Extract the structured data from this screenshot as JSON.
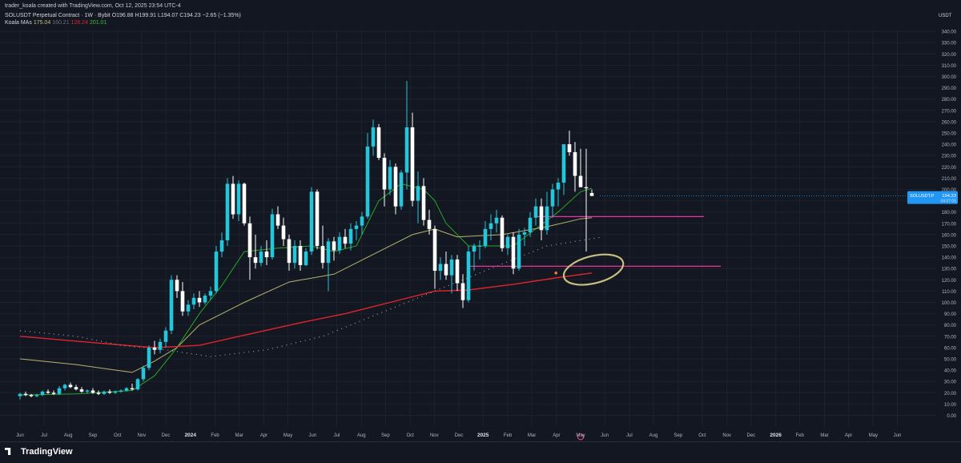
{
  "header": {
    "credit": "trader_koala created with TradingView.com, Oct 12, 2025 23:54 UTC-4",
    "symbol_line": "SOLUSDT Perpetual Contract · 1W · Bybit",
    "ohlc": {
      "o": "O196.88",
      "h": "H199.91",
      "l": "L194.07",
      "c": "C194.23",
      "chg": "−2.65 (−1.35%)"
    },
    "ma_label": "Koala MAs",
    "ma_values": [
      "175.04",
      "160.21",
      "126.24",
      "201.01"
    ]
  },
  "axis_unit": "USDT",
  "price_tag": {
    "symbol": "SOLUSDT.P",
    "price": "194.23",
    "timer": "04:07:05"
  },
  "footer": {
    "brand": "TradingView"
  },
  "colors": {
    "bg": "#131722",
    "grid": "#1e222d",
    "up": "#26c6da",
    "down": "#ffffff",
    "ma_fast": "#26a626",
    "ma_mid": "#b8b46a",
    "ma_slow": "#e0242c",
    "ma_dotted": "#9aa0ac",
    "level": "#f032a0",
    "circle": "#c8c080",
    "tag": "#2196f3"
  },
  "chart_data": {
    "type": "candlestick",
    "ylim": [
      -10,
      350
    ],
    "y_ticks": [
      "0.00",
      "10.00",
      "20.00",
      "30.00",
      "40.00",
      "50.00",
      "60.00",
      "70.00",
      "80.00",
      "90.00",
      "100.00",
      "110.00",
      "120.00",
      "130.00",
      "140.00",
      "150.00",
      "160.00",
      "170.00",
      "180.00",
      "190.00",
      "200.00",
      "210.00",
      "220.00",
      "230.00",
      "240.00",
      "250.00",
      "260.00",
      "270.00",
      "280.00",
      "290.00",
      "300.00",
      "310.00",
      "320.00",
      "330.00",
      "340.00"
    ],
    "y_tick_values": [
      0,
      10,
      20,
      30,
      40,
      50,
      60,
      70,
      80,
      90,
      100,
      110,
      120,
      130,
      140,
      150,
      160,
      170,
      180,
      190,
      200,
      210,
      220,
      230,
      240,
      250,
      260,
      270,
      280,
      290,
      300,
      310,
      320,
      330,
      340
    ],
    "x_labels": [
      "Jun",
      "Jul",
      "Aug",
      "Sep",
      "Oct",
      "Nov",
      "Dec",
      "2024",
      "Feb",
      "Mar",
      "Apr",
      "May",
      "Jun",
      "Jul",
      "Aug",
      "Sep",
      "Oct",
      "Nov",
      "Dec",
      "2025",
      "Feb",
      "Mar",
      "Apr",
      "May",
      "Jun",
      "Jul",
      "Aug",
      "Sep",
      "Oct",
      "Nov",
      "Dec",
      "2026",
      "Feb",
      "Mar",
      "Apr",
      "May",
      "Jun"
    ],
    "x_label_weeks": [
      0,
      4.3,
      8.6,
      13,
      17.4,
      21.7,
      26,
      30.4,
      34.8,
      39.1,
      43.5,
      47.8,
      52.2,
      56.5,
      60.9,
      65.2,
      69.6,
      73.9,
      78.3,
      82.6,
      87,
      91.3,
      95.7,
      100,
      104.3,
      108.7,
      113,
      117.4,
      121.7,
      126.1,
      130.4,
      134.8,
      139.1,
      143.5,
      147.8,
      152.2,
      156.5
    ],
    "series": [
      {
        "name": "SOLUSDT.P",
        "candles": [
          [
            17,
            20,
            14,
            19
          ],
          [
            19,
            21,
            17,
            18
          ],
          [
            18,
            19,
            16,
            17
          ],
          [
            17,
            19,
            16,
            18
          ],
          [
            18,
            22,
            17,
            21
          ],
          [
            21,
            23,
            19,
            20
          ],
          [
            20,
            22,
            18,
            19
          ],
          [
            19,
            26,
            18,
            24
          ],
          [
            24,
            28,
            22,
            27
          ],
          [
            27,
            29,
            24,
            25
          ],
          [
            25,
            27,
            22,
            23
          ],
          [
            23,
            25,
            20,
            21
          ],
          [
            21,
            23,
            19,
            22
          ],
          [
            22,
            24,
            19,
            20
          ],
          [
            20,
            22,
            18,
            19
          ],
          [
            19,
            22,
            18,
            21
          ],
          [
            21,
            23,
            19,
            20
          ],
          [
            20,
            22,
            19,
            21
          ],
          [
            21,
            23,
            20,
            22
          ],
          [
            22,
            25,
            21,
            24
          ],
          [
            24,
            28,
            22,
            23
          ],
          [
            23,
            33,
            22,
            32
          ],
          [
            32,
            44,
            30,
            42
          ],
          [
            42,
            62,
            40,
            60
          ],
          [
            60,
            66,
            54,
            58
          ],
          [
            58,
            68,
            55,
            65
          ],
          [
            65,
            78,
            60,
            75
          ],
          [
            75,
            124,
            72,
            120
          ],
          [
            120,
            124,
            104,
            110
          ],
          [
            110,
            118,
            88,
            92
          ],
          [
            92,
            102,
            88,
            98
          ],
          [
            98,
            108,
            94,
            104
          ],
          [
            104,
            110,
            96,
            100
          ],
          [
            100,
            108,
            98,
            106
          ],
          [
            106,
            114,
            102,
            110
          ],
          [
            110,
            150,
            108,
            145
          ],
          [
            145,
            162,
            140,
            155
          ],
          [
            155,
            210,
            150,
            205
          ],
          [
            205,
            212,
            174,
            178
          ],
          [
            178,
            208,
            172,
            205
          ],
          [
            205,
            206,
            168,
            170
          ],
          [
            170,
            176,
            120,
            140
          ],
          [
            140,
            160,
            130,
            135
          ],
          [
            135,
            150,
            132,
            145
          ],
          [
            145,
            155,
            133,
            140
          ],
          [
            140,
            183,
            138,
            178
          ],
          [
            178,
            185,
            165,
            168
          ],
          [
            168,
            175,
            150,
            156
          ],
          [
            156,
            160,
            128,
            135
          ],
          [
            135,
            155,
            130,
            150
          ],
          [
            150,
            155,
            128,
            133
          ],
          [
            133,
            148,
            132,
            145
          ],
          [
            145,
            202,
            142,
            198
          ],
          [
            198,
            200,
            147,
            150
          ],
          [
            150,
            168,
            130,
            135
          ],
          [
            135,
            157,
            110,
            154
          ],
          [
            154,
            158,
            137,
            146
          ],
          [
            146,
            162,
            143,
            158
          ],
          [
            158,
            165,
            148,
            152
          ],
          [
            152,
            170,
            146,
            165
          ],
          [
            165,
            172,
            155,
            168
          ],
          [
            168,
            180,
            160,
            176
          ],
          [
            176,
            250,
            174,
            238
          ],
          [
            238,
            262,
            230,
            255
          ],
          [
            255,
            258,
            226,
            228
          ],
          [
            228,
            232,
            185,
            200
          ],
          [
            200,
            226,
            195,
            220
          ],
          [
            220,
            223,
            178,
            185
          ],
          [
            185,
            217,
            182,
            215
          ],
          [
            215,
            296,
            200,
            255
          ],
          [
            255,
            268,
            185,
            190
          ],
          [
            190,
            216,
            170,
            203
          ],
          [
            203,
            210,
            168,
            173
          ],
          [
            173,
            182,
            160,
            165
          ],
          [
            165,
            168,
            112,
            128
          ],
          [
            128,
            140,
            120,
            134
          ],
          [
            134,
            145,
            120,
            124
          ],
          [
            124,
            142,
            108,
            138
          ],
          [
            138,
            142,
            110,
            117
          ],
          [
            117,
            125,
            95,
            102
          ],
          [
            102,
            150,
            100,
            145
          ],
          [
            145,
            152,
            128,
            150
          ],
          [
            150,
            155,
            138,
            150
          ],
          [
            150,
            172,
            148,
            165
          ],
          [
            165,
            178,
            155,
            170
          ],
          [
            170,
            182,
            162,
            175
          ],
          [
            175,
            177,
            145,
            148
          ],
          [
            148,
            160,
            142,
            158
          ],
          [
            158,
            162,
            125,
            130
          ],
          [
            130,
            165,
            128,
            160
          ],
          [
            160,
            166,
            150,
            162
          ],
          [
            162,
            180,
            158,
            175
          ],
          [
            175,
            192,
            168,
            185
          ],
          [
            185,
            192,
            155,
            164
          ],
          [
            164,
            198,
            160,
            185
          ],
          [
            185,
            205,
            175,
            200
          ],
          [
            200,
            210,
            185,
            206
          ],
          [
            206,
            240,
            195,
            240
          ],
          [
            240,
            252,
            230,
            233
          ],
          [
            233,
            242,
            198,
            212
          ],
          [
            212,
            236,
            205,
            202
          ],
          [
            202,
            236,
            145,
            201
          ],
          [
            196.88,
            199.91,
            194.07,
            194.23
          ]
        ]
      }
    ],
    "moving_averages": [
      {
        "name": "MA fast",
        "color": "#26a626",
        "values": [
          [
            0,
            18
          ],
          [
            10,
            19
          ],
          [
            20,
            22
          ],
          [
            24,
            35
          ],
          [
            28,
            60
          ],
          [
            32,
            90
          ],
          [
            36,
            115
          ],
          [
            40,
            145
          ],
          [
            46,
            148
          ],
          [
            52,
            150
          ],
          [
            56,
            145
          ],
          [
            60,
            150
          ],
          [
            64,
            190
          ],
          [
            68,
            205
          ],
          [
            72,
            200
          ],
          [
            74,
            190
          ],
          [
            76,
            170
          ],
          [
            80,
            150
          ],
          [
            84,
            150
          ],
          [
            88,
            150
          ],
          [
            92,
            165
          ],
          [
            96,
            180
          ],
          [
            100,
            198
          ],
          [
            102,
            201
          ]
        ]
      },
      {
        "name": "MA mid",
        "color": "#b8b46a",
        "values": [
          [
            0,
            50
          ],
          [
            10,
            45
          ],
          [
            20,
            38
          ],
          [
            24,
            48
          ],
          [
            28,
            60
          ],
          [
            32,
            80
          ],
          [
            40,
            100
          ],
          [
            48,
            118
          ],
          [
            56,
            125
          ],
          [
            64,
            145
          ],
          [
            70,
            160
          ],
          [
            74,
            165
          ],
          [
            78,
            158
          ],
          [
            86,
            160
          ],
          [
            94,
            167
          ],
          [
            100,
            174
          ],
          [
            102,
            175
          ]
        ]
      },
      {
        "name": "MA slow",
        "color": "#e0242c",
        "values": [
          [
            0,
            70
          ],
          [
            14,
            64
          ],
          [
            24,
            60
          ],
          [
            32,
            62
          ],
          [
            40,
            71
          ],
          [
            50,
            82
          ],
          [
            58,
            90
          ],
          [
            66,
            100
          ],
          [
            74,
            110
          ],
          [
            80,
            111
          ],
          [
            88,
            116
          ],
          [
            96,
            122
          ],
          [
            102,
            126
          ]
        ]
      },
      {
        "name": "MA dotted",
        "color": "#9aa0ac",
        "values": [
          [
            0,
            75
          ],
          [
            10,
            70
          ],
          [
            18,
            62
          ],
          [
            26,
            58
          ],
          [
            34,
            52
          ],
          [
            44,
            58
          ],
          [
            54,
            70
          ],
          [
            64,
            90
          ],
          [
            74,
            110
          ],
          [
            84,
            130
          ],
          [
            94,
            150
          ],
          [
            104,
            158
          ]
        ]
      }
    ],
    "levels": [
      {
        "name": "level 176",
        "value": 176,
        "from_week": 92,
        "to_week": 122
      },
      {
        "name": "level 132",
        "value": 132,
        "from_week": 80,
        "to_week": 125
      }
    ],
    "last_price": 194.23,
    "grid": true
  }
}
